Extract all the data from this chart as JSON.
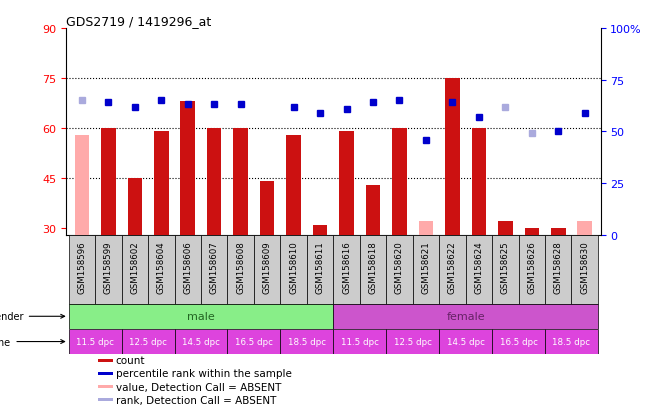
{
  "title": "GDS2719 / 1419296_at",
  "samples": [
    "GSM158596",
    "GSM158599",
    "GSM158602",
    "GSM158604",
    "GSM158606",
    "GSM158607",
    "GSM158608",
    "GSM158609",
    "GSM158610",
    "GSM158611",
    "GSM158616",
    "GSM158618",
    "GSM158620",
    "GSM158621",
    "GSM158622",
    "GSM158624",
    "GSM158625",
    "GSM158626",
    "GSM158628",
    "GSM158630"
  ],
  "bar_values": [
    58,
    60,
    45,
    59,
    68,
    60,
    60,
    44,
    58,
    31,
    59,
    43,
    60,
    32,
    75,
    60,
    32,
    30,
    30,
    32
  ],
  "bar_absent": [
    true,
    false,
    false,
    false,
    false,
    false,
    false,
    false,
    false,
    false,
    false,
    false,
    false,
    true,
    false,
    false,
    false,
    false,
    false,
    true
  ],
  "dot_values": [
    65,
    64,
    62,
    65,
    63,
    63,
    63,
    null,
    62,
    59,
    61,
    64,
    65,
    46,
    64,
    57,
    62,
    49,
    50,
    59
  ],
  "dot_absent": [
    true,
    false,
    false,
    false,
    false,
    false,
    false,
    false,
    false,
    false,
    false,
    false,
    false,
    false,
    false,
    false,
    true,
    true,
    false,
    false
  ],
  "ylim_left": [
    28,
    90
  ],
  "ylim_right": [
    0,
    100
  ],
  "yticks_left": [
    30,
    45,
    60,
    75,
    90
  ],
  "yticks_right": [
    0,
    25,
    50,
    75,
    100
  ],
  "bar_color_present": "#cc1111",
  "bar_color_absent": "#ffaaaa",
  "dot_color_present": "#0000cc",
  "dot_color_absent": "#aaaadd",
  "gender_male_color": "#88ee88",
  "gender_female_color": "#cc55cc",
  "gender_male_text": "#226622",
  "gender_female_text": "#662266",
  "time_mag_color": "#dd44dd",
  "time_white_color": "#ffffff",
  "sample_box_color": "#cccccc",
  "legend_items": [
    {
      "label": "count",
      "color": "#cc1111"
    },
    {
      "label": "percentile rank within the sample",
      "color": "#0000cc"
    },
    {
      "label": "value, Detection Call = ABSENT",
      "color": "#ffaaaa"
    },
    {
      "label": "rank, Detection Call = ABSENT",
      "color": "#aaaadd"
    }
  ]
}
